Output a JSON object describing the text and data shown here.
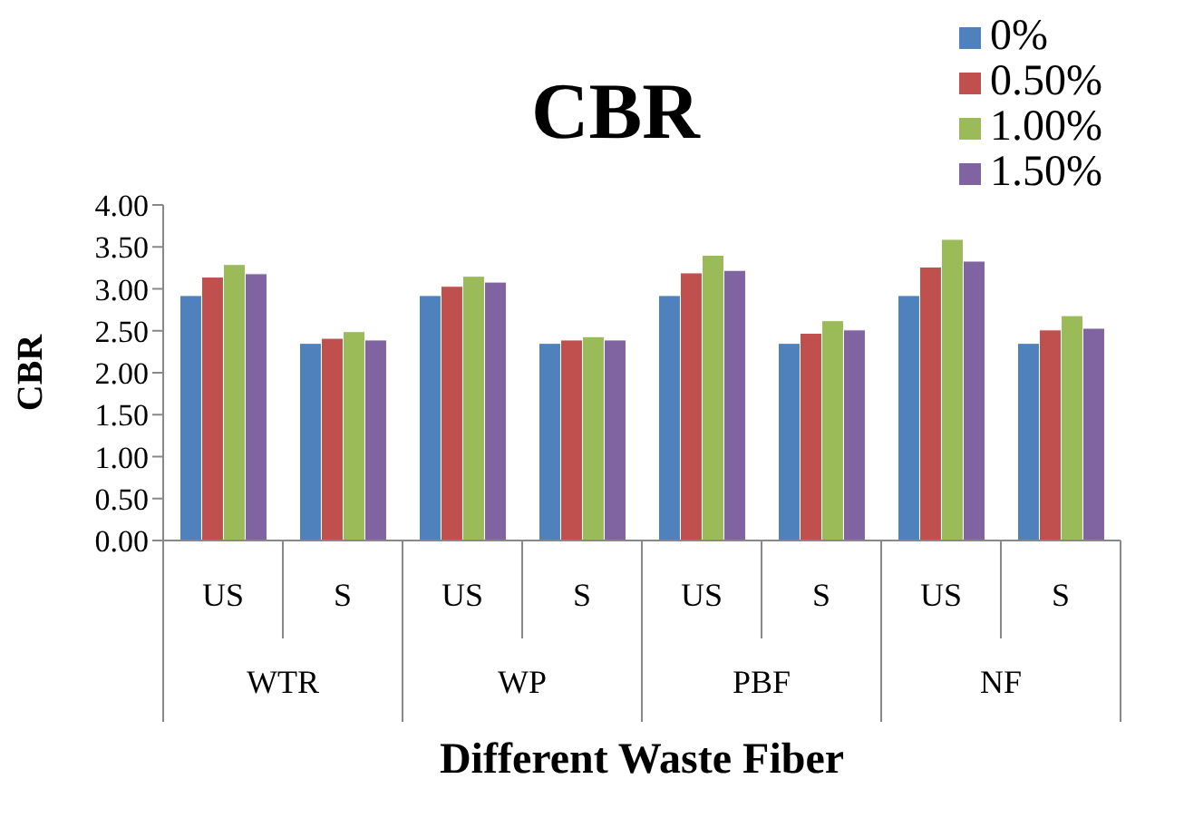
{
  "chart_data": {
    "type": "bar",
    "title": "CBR",
    "xlabel": "Different Waste Fiber",
    "ylabel": "CBR",
    "categories": [
      "US",
      "S",
      "US",
      "S",
      "US",
      "S",
      "US",
      "S"
    ],
    "annotations": [
      "WTR",
      "WP",
      "PBF",
      "NF"
    ],
    "series": [
      {
        "name": "0%",
        "color": "#4f81bd",
        "values": [
          2.92,
          2.35,
          2.92,
          2.35,
          2.92,
          2.35,
          2.92,
          2.35
        ]
      },
      {
        "name": "0.50%",
        "color": "#c0504d",
        "values": [
          3.14,
          2.41,
          3.03,
          2.39,
          3.19,
          2.47,
          3.26,
          2.51
        ]
      },
      {
        "name": "1.00%",
        "color": "#9bbb59",
        "values": [
          3.29,
          2.49,
          3.15,
          2.43,
          3.4,
          2.62,
          3.59,
          2.68
        ]
      },
      {
        "name": "1.50%",
        "color": "#8064a2",
        "values": [
          3.18,
          2.39,
          3.08,
          2.39,
          3.22,
          2.51,
          3.33,
          2.53
        ]
      }
    ],
    "ylim": [
      0,
      4
    ],
    "yticks": [
      {
        "value": 0,
        "label": "0.00"
      },
      {
        "value": 0.5,
        "label": "0.50"
      },
      {
        "value": 1,
        "label": "1.00"
      },
      {
        "value": 1.5,
        "label": "1.50"
      },
      {
        "value": 2,
        "label": "2.00"
      },
      {
        "value": 2.5,
        "label": "2.50"
      },
      {
        "value": 3,
        "label": "3.00"
      },
      {
        "value": 3.5,
        "label": "3.50"
      },
      {
        "value": 4,
        "label": "4.00"
      }
    ],
    "grid": false,
    "legend": "top right"
  }
}
